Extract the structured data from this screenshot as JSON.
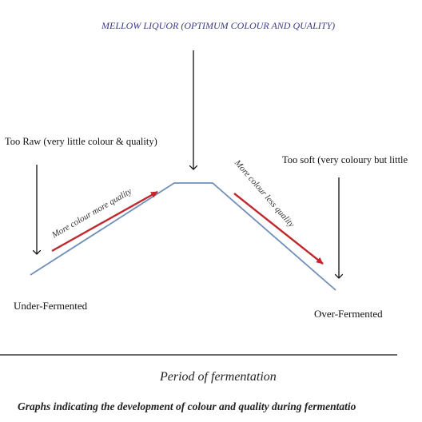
{
  "title": "MELLOW LIQUOR (OPTIMUM COLOUR AND QUALITY)",
  "left_note": "Too Raw (very little colour & quality)",
  "right_note": "Too soft (very coloury but little",
  "rise_label": "More colour more quality",
  "fall_label": "More colour less quality",
  "start_label": "Under-Fermented",
  "end_label": "Over-Fermented",
  "x_axis_label": "Period of fermentation",
  "caption": "Graphs indicating the development of colour and quality during fermentatio",
  "colors": {
    "curve": "#6f8fb8",
    "trend_arrow": "#c0282d",
    "pointer_arrow": "#111111"
  }
}
